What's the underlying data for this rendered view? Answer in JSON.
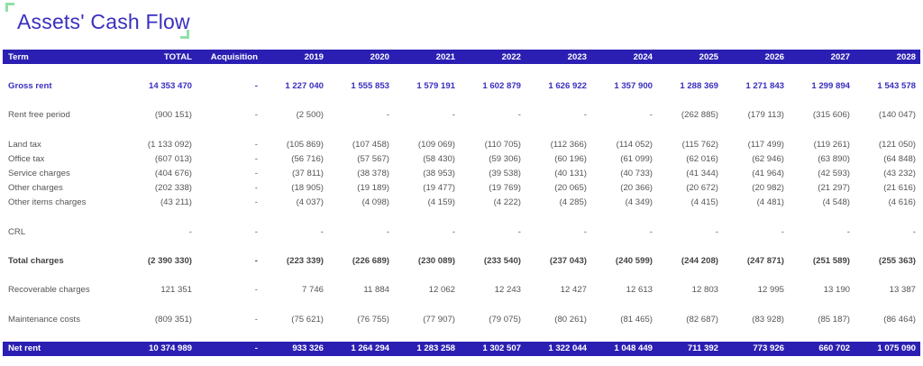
{
  "title": "Assets' Cash Flow",
  "colors": {
    "header_bg": "#2b1fb3",
    "title_color": "#3a2fc0",
    "accent_corner": "#8fe0a8"
  },
  "columns": [
    "Term",
    "TOTAL",
    "Acquisition",
    "2019",
    "2020",
    "2021",
    "2022",
    "2023",
    "2024",
    "2025",
    "2026",
    "2027",
    "2028"
  ],
  "rows": {
    "gross_rent": [
      "Gross rent",
      "14 353 470",
      "-",
      "1 227 040",
      "1 555 853",
      "1 579 191",
      "1 602 879",
      "1 626 922",
      "1 357 900",
      "1 288 369",
      "1 271 843",
      "1 299 894",
      "1 543 578"
    ],
    "rent_free": [
      "Rent free period",
      "(900 151)",
      "-",
      "(2 500)",
      "-",
      "-",
      "-",
      "-",
      "-",
      "(262 885)",
      "(179 113)",
      "(315 606)",
      "(140 047)"
    ],
    "land_tax": [
      "Land tax",
      "(1 133 092)",
      "-",
      "(105 869)",
      "(107 458)",
      "(109 069)",
      "(110 705)",
      "(112 366)",
      "(114 052)",
      "(115 762)",
      "(117 499)",
      "(119 261)",
      "(121 050)"
    ],
    "office_tax": [
      "Office tax",
      "(607 013)",
      "-",
      "(56 716)",
      "(57 567)",
      "(58 430)",
      "(59 306)",
      "(60 196)",
      "(61 099)",
      "(62 016)",
      "(62 946)",
      "(63 890)",
      "(64 848)"
    ],
    "service_charges": [
      "Service charges",
      "(404 676)",
      "-",
      "(37 811)",
      "(38 378)",
      "(38 953)",
      "(39 538)",
      "(40 131)",
      "(40 733)",
      "(41 344)",
      "(41 964)",
      "(42 593)",
      "(43 232)"
    ],
    "other_charges": [
      "Other charges",
      "(202 338)",
      "-",
      "(18 905)",
      "(19 189)",
      "(19 477)",
      "(19 769)",
      "(20 065)",
      "(20 366)",
      "(20 672)",
      "(20 982)",
      "(21 297)",
      "(21 616)"
    ],
    "other_items": [
      "Other items charges",
      "(43 211)",
      "-",
      "(4 037)",
      "(4 098)",
      "(4 159)",
      "(4 222)",
      "(4 285)",
      "(4 349)",
      "(4 415)",
      "(4 481)",
      "(4 548)",
      "(4 616)"
    ],
    "crl": [
      "CRL",
      "-",
      "-",
      "-",
      "-",
      "-",
      "-",
      "-",
      "-",
      "-",
      "-",
      "-",
      "-"
    ],
    "total_charges": [
      "Total charges",
      "(2 390 330)",
      "-",
      "(223 339)",
      "(226 689)",
      "(230 089)",
      "(233 540)",
      "(237 043)",
      "(240 599)",
      "(244 208)",
      "(247 871)",
      "(251 589)",
      "(255 363)"
    ],
    "recoverable": [
      "Recoverable charges",
      "121 351",
      "-",
      "7 746",
      "11 884",
      "12 062",
      "12 243",
      "12 427",
      "12 613",
      "12 803",
      "12 995",
      "13 190",
      "13 387"
    ],
    "maintenance": [
      "Maintenance costs",
      "(809 351)",
      "-",
      "(75 621)",
      "(76 755)",
      "(77 907)",
      "(79 075)",
      "(80 261)",
      "(81 465)",
      "(82 687)",
      "(83 928)",
      "(85 187)",
      "(86 464)"
    ],
    "net_rent": [
      "Net rent",
      "10 374 989",
      "-",
      "933 326",
      "1 264 294",
      "1 283 258",
      "1 302 507",
      "1 322 044",
      "1 048 449",
      "711 392",
      "773 926",
      "660 702",
      "1 075 090"
    ]
  }
}
